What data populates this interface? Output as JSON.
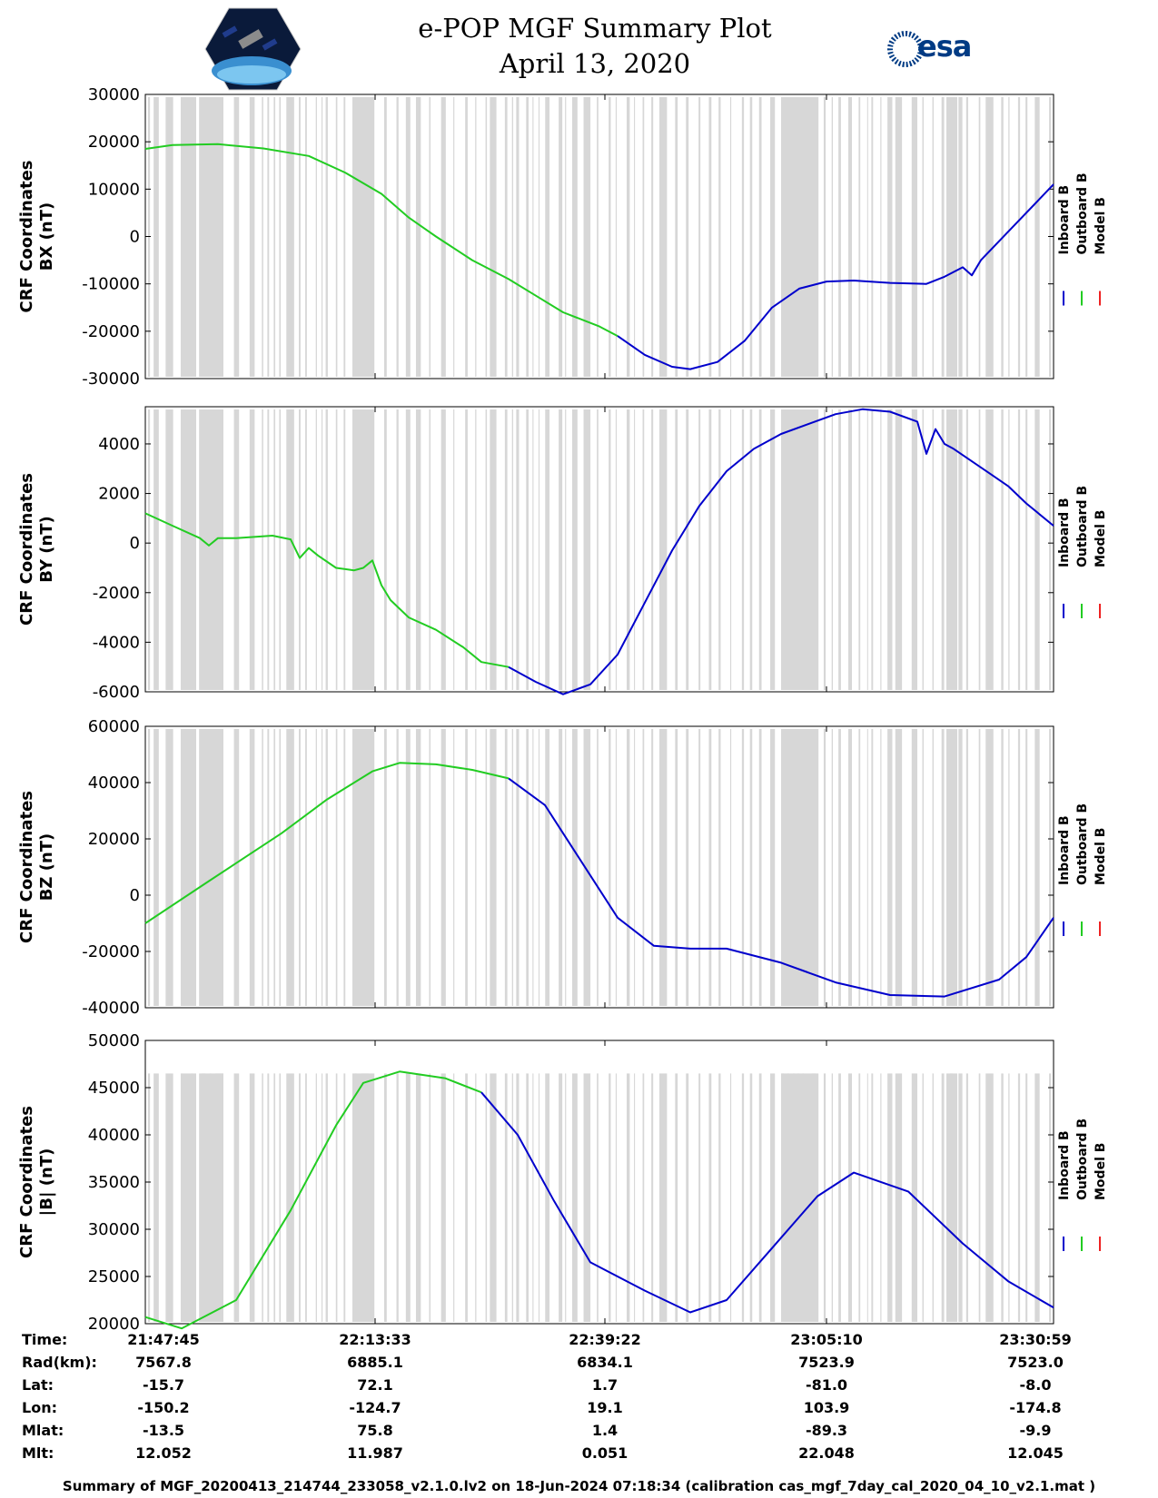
{
  "title": "e-POP MGF Summary Plot",
  "date": "April 13, 2020",
  "esa_logo_text": "esa",
  "legend": {
    "labels": [
      "Inboard B",
      "Outboard B",
      "Model B"
    ],
    "colors": [
      "#0000cc",
      "#22cc22",
      "#ee2222"
    ]
  },
  "colors": {
    "gray_band": "#d7d7d7",
    "axis": "#000000"
  },
  "chart_data": [
    {
      "type": "line",
      "ylabel_line1": "CRF Coordinates",
      "ylabel_line2": "BX (nT)",
      "ylim": [
        -30000,
        30000
      ],
      "yticks": [
        "-30000",
        "-20000",
        "-10000",
        "0",
        "10000",
        "20000",
        "30000"
      ],
      "ytick_values": [
        -30000,
        -20000,
        -10000,
        0,
        10000,
        20000,
        30000
      ],
      "xlim": [
        0,
        100
      ],
      "series": [
        {
          "name": "Outboard B",
          "x": [
            0,
            3,
            8,
            13,
            18,
            22,
            26,
            29,
            32,
            36,
            40,
            43,
            46,
            50,
            52
          ],
          "y": [
            18500,
            19300,
            19500,
            18600,
            17000,
            13500,
            9000,
            4000,
            0,
            -5000,
            -9000,
            -12500,
            -16000,
            -19000,
            -21000
          ]
        },
        {
          "name": "Inboard B",
          "x": [
            52,
            55,
            58,
            60,
            63,
            66,
            69,
            72,
            75,
            78,
            82,
            86,
            88,
            90,
            91,
            92,
            94,
            96,
            98,
            100
          ],
          "y": [
            -21000,
            -25000,
            -27500,
            -28000,
            -26500,
            -22000,
            -15000,
            -11000,
            -9500,
            -9300,
            -9800,
            -10000,
            -8500,
            -6500,
            -8200,
            -5000,
            -1000,
            3000,
            7000,
            11000
          ]
        }
      ]
    },
    {
      "type": "line",
      "ylabel_line1": "CRF Coordinates",
      "ylabel_line2": "BY (nT)",
      "ylim": [
        -6000,
        5500
      ],
      "yticks": [
        "-6000",
        "-4000",
        "-2000",
        "0",
        "2000",
        "4000"
      ],
      "ytick_values": [
        -6000,
        -4000,
        -2000,
        0,
        2000,
        4000
      ],
      "xlim": [
        0,
        100
      ],
      "series": [
        {
          "name": "Outboard B",
          "x": [
            0,
            3,
            6,
            7,
            8,
            10,
            14,
            16,
            17,
            18,
            19,
            21,
            23,
            24,
            25,
            26,
            27,
            29,
            32,
            35,
            37,
            40
          ],
          "y": [
            1200,
            700,
            200,
            -100,
            200,
            200,
            300,
            150,
            -600,
            -200,
            -500,
            -1000,
            -1100,
            -1000,
            -700,
            -1700,
            -2300,
            -3000,
            -3500,
            -4200,
            -4800,
            -5000
          ]
        },
        {
          "name": "Inboard B",
          "x": [
            40,
            43,
            46,
            49,
            52,
            55,
            58,
            61,
            64,
            67,
            70,
            73,
            76,
            79,
            82,
            85,
            86,
            87,
            88,
            89,
            91,
            93,
            95,
            97,
            100
          ],
          "y": [
            -5000,
            -5600,
            -6100,
            -5700,
            -4500,
            -2400,
            -300,
            1500,
            2900,
            3800,
            4400,
            4800,
            5200,
            5400,
            5300,
            4900,
            3600,
            4600,
            4000,
            3800,
            3300,
            2800,
            2300,
            1600,
            700
          ]
        }
      ]
    },
    {
      "type": "line",
      "ylabel_line1": "CRF Coordinates",
      "ylabel_line2": "BZ (nT)",
      "ylim": [
        -40000,
        60000
      ],
      "yticks": [
        "-40000",
        "-20000",
        "0",
        "20000",
        "40000",
        "60000"
      ],
      "ytick_values": [
        -40000,
        -20000,
        0,
        20000,
        40000,
        60000
      ],
      "xlim": [
        0,
        100
      ],
      "series": [
        {
          "name": "Outboard B",
          "x": [
            0,
            7,
            15,
            20,
            25,
            28,
            32,
            36,
            40
          ],
          "y": [
            -10000,
            5000,
            22000,
            34000,
            44000,
            47000,
            46500,
            44500,
            41500
          ]
        },
        {
          "name": "Inboard B",
          "x": [
            40,
            44,
            48,
            52,
            56,
            60,
            64,
            70,
            76,
            82,
            88,
            94,
            97,
            100
          ],
          "y": [
            41500,
            32000,
            12000,
            -8000,
            -18000,
            -19000,
            -19000,
            -24000,
            -31000,
            -35500,
            -36000,
            -30000,
            -22000,
            -8000
          ]
        }
      ]
    },
    {
      "type": "line",
      "ylabel_line1": "CRF Coordinates",
      "ylabel_line2": "|B| (nT)",
      "ylim": [
        20000,
        50000
      ],
      "yticks": [
        "20000",
        "25000",
        "30000",
        "35000",
        "40000",
        "45000",
        "50000"
      ],
      "ytick_values": [
        20000,
        25000,
        30000,
        35000,
        40000,
        45000,
        50000
      ],
      "xlim": [
        0,
        100
      ],
      "series": [
        {
          "name": "Outboard B",
          "x": [
            0,
            4,
            10,
            16,
            21,
            24,
            28,
            33,
            37
          ],
          "y": [
            20700,
            19500,
            22500,
            32000,
            41000,
            45500,
            46700,
            46000,
            44500
          ]
        },
        {
          "name": "Inboard B",
          "x": [
            37,
            41,
            45,
            49,
            55,
            60,
            64,
            69,
            74,
            78,
            84,
            90,
            95,
            100
          ],
          "y": [
            44500,
            40000,
            33000,
            26500,
            23500,
            21200,
            22500,
            28000,
            33500,
            36000,
            34000,
            28500,
            24500,
            21700
          ]
        }
      ]
    }
  ],
  "x_ticks": [
    "21:47:45",
    "22:13:33",
    "22:39:22",
    "23:05:10",
    "23:30:59"
  ],
  "info_labels": [
    "Time:",
    "Rad(km):",
    "Lat:",
    "Lon:",
    "Mlat:",
    "Mlt:"
  ],
  "info_values": [
    [
      "21:47:45",
      "22:13:33",
      "22:39:22",
      "23:05:10",
      "23:30:59"
    ],
    [
      "7567.8",
      "6885.1",
      "6834.1",
      "7523.9",
      "7523.0"
    ],
    [
      "-15.7",
      "72.1",
      "1.7",
      "-81.0",
      "-8.0"
    ],
    [
      "-150.2",
      "-124.7",
      "19.1",
      "103.9",
      "-174.8"
    ],
    [
      "-13.5",
      "75.8",
      "1.4",
      "-89.3",
      "-9.9"
    ],
    [
      "12.052",
      "11.987",
      "0.051",
      "22.048",
      "12.045"
    ]
  ],
  "footer": "Summary of MGF_20200413_214744_233058_v2.1.0.lv2 on 18-Jun-2024 07:18:34 (calibration cas_mgf_7day_cal_2020_04_10_v2.1.mat )"
}
